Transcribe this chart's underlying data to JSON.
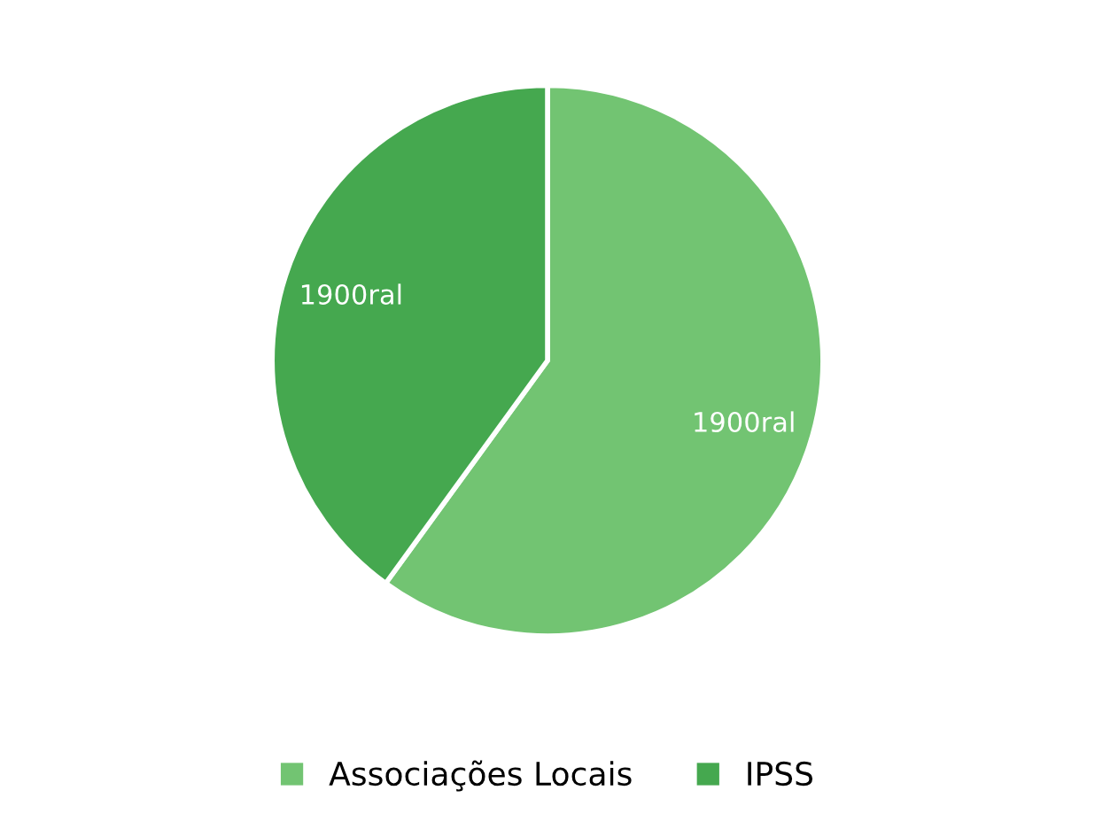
{
  "chart_data": {
    "type": "pie",
    "categories": [
      "Associações Locais",
      "IPSS"
    ],
    "values": [
      60,
      40
    ],
    "colors": [
      "#72c472",
      "#45a84f"
    ],
    "annotations": [
      "1900ral",
      "1900ral"
    ],
    "legend": "bottom"
  }
}
